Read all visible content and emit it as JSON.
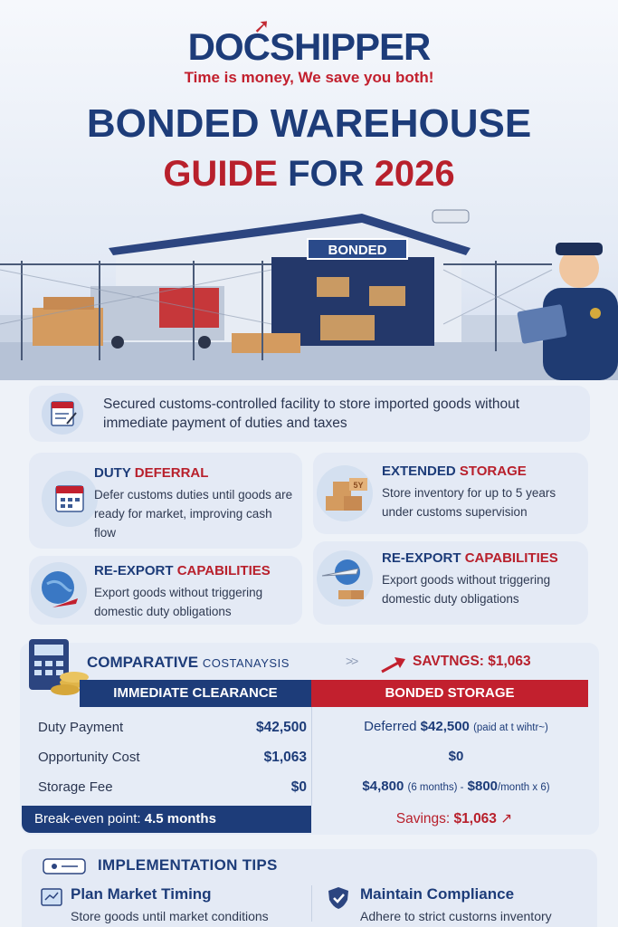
{
  "brand": {
    "logo": "DOCSHIPPER",
    "slogan": "Time is money, We save you both!"
  },
  "title": {
    "line1": "BONDED WAREHOUSE",
    "line2_a": "GUIDE",
    "line2_b": "FOR",
    "line2_c": "2026"
  },
  "scene": {
    "sign": "BONDED",
    "box_label": "5Y"
  },
  "intro": {
    "text": "Secured customs-controlled facility to store imported goods without immediate payment of duties and taxes"
  },
  "features": [
    {
      "title_a": "DUTY",
      "title_b": "DEFERRAL",
      "desc": "Defer customs duties until goods are ready for market, improving cash flow"
    },
    {
      "title_a": "EXTENDED",
      "title_b": "STORAGE",
      "desc": "Store inventory for up to 5 years under customs supervision"
    },
    {
      "title_a": "RE-EXPORT",
      "title_b": "CAPABILITIES",
      "desc": "Export goods without triggering domestic duty obligations"
    },
    {
      "title_a": "RE-EXPORT",
      "title_b": "CAPABILITIES",
      "desc": "Export goods without triggering domestic duty obligations"
    }
  ],
  "comparison": {
    "title_a": "COMPARATIVE",
    "title_b": "COSTANAYSIS",
    "arrows": ">>",
    "savings_top": "SAVTNGS: $1,063",
    "col_left": "IMMEDIATE CLEARANCE",
    "col_right": "BONDED STORAGE",
    "rows": [
      {
        "label": "Duty Payment",
        "left": "$42,500",
        "right_prefix": "Deferred",
        "right": "$42,500",
        "right_note": "(paid at t wihtr~)"
      },
      {
        "label": "Opportunity Cost",
        "left": "$1,063",
        "right": "$0"
      },
      {
        "label": "Storage Fee",
        "left": "$0",
        "right": "$4,800",
        "right_mid": "(6 months) -",
        "right_b": "$800",
        "right_end": "/month x 6)"
      }
    ],
    "breakeven_label": "Break-even point:",
    "breakeven_value": "4.5 months",
    "savings_label": "Savings:",
    "savings_value": "$1,063"
  },
  "tips": {
    "title": "IMPLEMENTATION TIPS",
    "items": [
      {
        "head": "Plan Market Timing",
        "desc": "Store goods until market conditions"
      },
      {
        "head": "Maintain Compliance",
        "desc": "Adhere to strict custorns inventory"
      }
    ]
  },
  "colors": {
    "navy": "#1d3c79",
    "red": "#b8202c",
    "panel": "#e4eaf5"
  }
}
